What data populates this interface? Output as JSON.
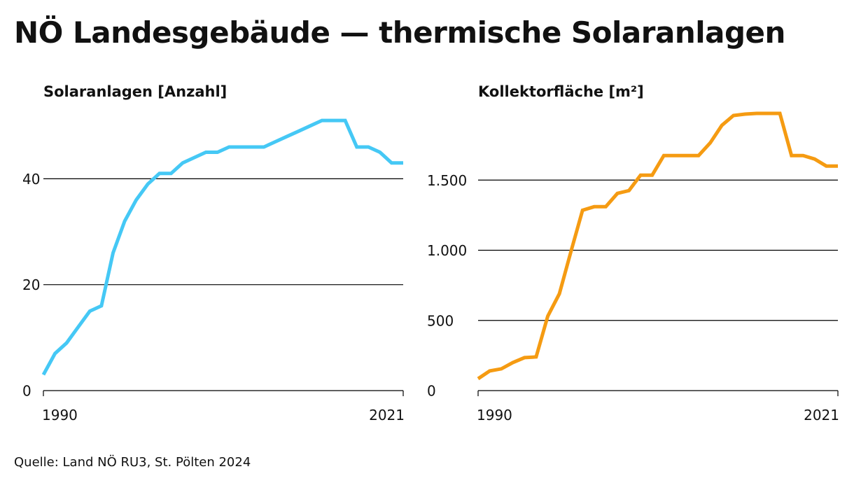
{
  "title": "NÖ Landesgebäude — thermische Solaranlagen",
  "source": "Quelle: Land NÖ RU3, St. Pölten 2024",
  "chart_data": [
    {
      "type": "line",
      "title": "Solaranlagen [Anzahl]",
      "color": "#45C8F5",
      "x": [
        1990,
        1991,
        1992,
        1993,
        1994,
        1995,
        1996,
        1997,
        1998,
        1999,
        2000,
        2001,
        2002,
        2003,
        2004,
        2005,
        2006,
        2007,
        2008,
        2009,
        2010,
        2011,
        2012,
        2013,
        2014,
        2015,
        2016,
        2017,
        2018,
        2019,
        2020,
        2021
      ],
      "y": [
        3,
        7,
        9,
        12,
        15,
        16,
        26,
        32,
        36,
        39,
        41,
        41,
        43,
        44,
        45,
        45,
        46,
        46,
        46,
        46,
        47,
        48,
        49,
        50,
        51,
        51,
        51,
        46,
        46,
        45,
        43,
        43
      ],
      "xlim": [
        1990,
        2021
      ],
      "ylim": [
        0,
        53
      ],
      "xticks": [
        1990,
        2021
      ],
      "xtick_labels": [
        "1990",
        "2021"
      ],
      "yticks": [
        0,
        20,
        40
      ],
      "ytick_labels": [
        "0",
        "20",
        "40"
      ],
      "grid": true
    },
    {
      "type": "line",
      "title": "Kollektorfläche [m²]",
      "color": "#F59B12",
      "x": [
        1990,
        1991,
        1992,
        1993,
        1994,
        1995,
        1996,
        1997,
        1998,
        1999,
        2000,
        2001,
        2002,
        2003,
        2004,
        2005,
        2006,
        2007,
        2008,
        2009,
        2010,
        2011,
        2012,
        2013,
        2014,
        2015,
        2016,
        2017,
        2018,
        2019,
        2020,
        2021
      ],
      "y": [
        85,
        140,
        155,
        200,
        235,
        240,
        530,
        690,
        990,
        1285,
        1310,
        1310,
        1405,
        1425,
        1535,
        1535,
        1675,
        1675,
        1675,
        1675,
        1765,
        1890,
        1960,
        1970,
        1975,
        1975,
        1975,
        1675,
        1675,
        1650,
        1600,
        1600
      ],
      "xlim": [
        1990,
        2021
      ],
      "ylim": [
        0,
        2000
      ],
      "xticks": [
        1990,
        2021
      ],
      "xtick_labels": [
        "1990",
        "2021"
      ],
      "yticks": [
        0,
        500,
        1000,
        1500
      ],
      "ytick_labels": [
        "0",
        "500",
        "1.000",
        "1.500"
      ],
      "grid": true
    }
  ]
}
